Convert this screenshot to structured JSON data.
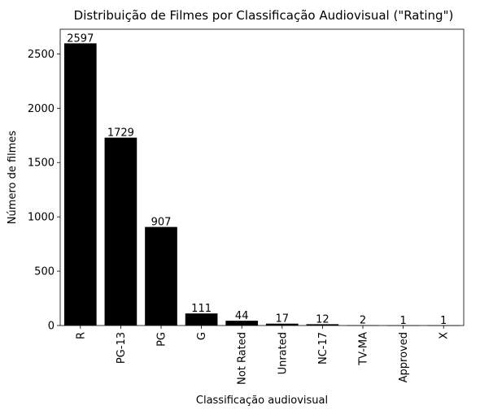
{
  "chart_data": {
    "type": "bar",
    "title": "Distribuição de Filmes por Classificação Audiovisual (\"Rating\")",
    "xlabel": "Classificação audiovisual",
    "ylabel": "Número de filmes",
    "categories": [
      "R",
      "PG-13",
      "PG",
      "G",
      "Not Rated",
      "Unrated",
      "NC-17",
      "TV-MA",
      "Approved",
      "X"
    ],
    "values": [
      2597,
      1729,
      907,
      111,
      44,
      17,
      12,
      2,
      1,
      1
    ],
    "data_labels": [
      "2597",
      "1729",
      "907",
      "111",
      "44",
      "17",
      "12",
      "2",
      "1",
      "1"
    ],
    "y_ticks": [
      0,
      500,
      1000,
      1500,
      2000,
      2500
    ],
    "ylim": [
      0,
      2727
    ],
    "bar_color": "#000000",
    "grid": false,
    "legend": "none"
  }
}
